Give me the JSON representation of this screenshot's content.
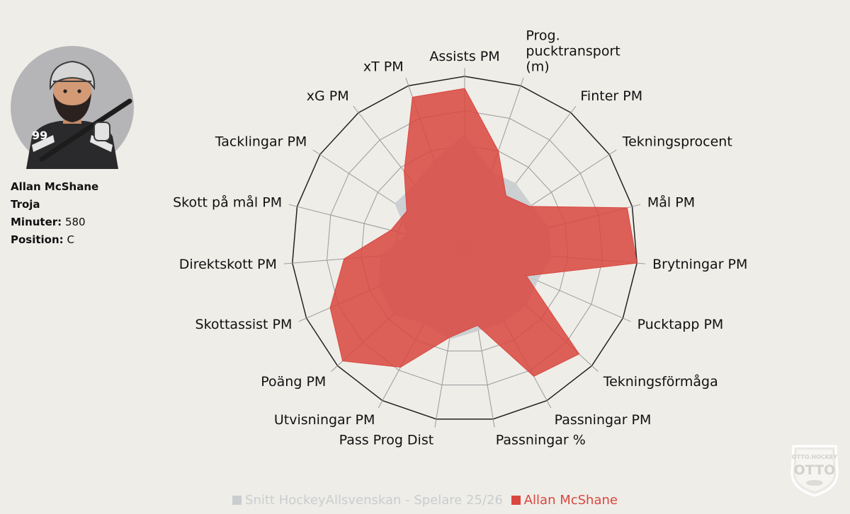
{
  "player": {
    "name": "Allan McShane",
    "team": "Troja",
    "minutes_label": "Minuter:",
    "minutes": "580",
    "position_label": "Position:",
    "position": "C",
    "jersey_number": "99"
  },
  "chart_data": {
    "type": "radar",
    "title": "",
    "axis_range": [
      0,
      100
    ],
    "grid_rings": 5,
    "categories": [
      "Assists PM",
      "Prog. pucktransport (m)",
      "Finter PM",
      "Tekningsprocent",
      "Mål PM",
      "Brytningar PM",
      "Pucktapp PM",
      "Tekningsförmåga",
      "Passningar PM",
      "Passningar %",
      "Pass Prog Dist",
      "Utvisningar PM",
      "Poäng PM",
      "Skottassist PM",
      "Direktskott PM",
      "Skott på mål PM",
      "Tacklingar PM",
      "xG PM",
      "xT PM"
    ],
    "series": [
      {
        "name": "Snitt HockeyAllsvenskan - Spelare 25/26",
        "color": "#c9cdd0",
        "values": [
          66,
          47,
          48,
          46,
          50,
          50,
          46,
          48,
          48,
          48,
          53,
          49,
          56,
          54,
          49,
          34,
          48,
          47,
          54
        ]
      },
      {
        "name": "Allan McShane",
        "color": "#d9473e",
        "values": [
          93,
          60,
          39,
          45,
          97,
          100,
          39,
          90,
          84,
          45,
          52,
          78,
          96,
          85,
          70,
          44,
          40,
          57,
          93
        ]
      }
    ]
  },
  "legend": {
    "items": [
      {
        "label": "Snitt HockeyAllsvenskan - Spelare 25/26",
        "color": "#c9cdd0"
      },
      {
        "label": "Allan McShane",
        "color": "#d9473e"
      }
    ]
  },
  "logo": {
    "top_text": "OTTO.HOCKEY",
    "main_text": "OTTO"
  }
}
